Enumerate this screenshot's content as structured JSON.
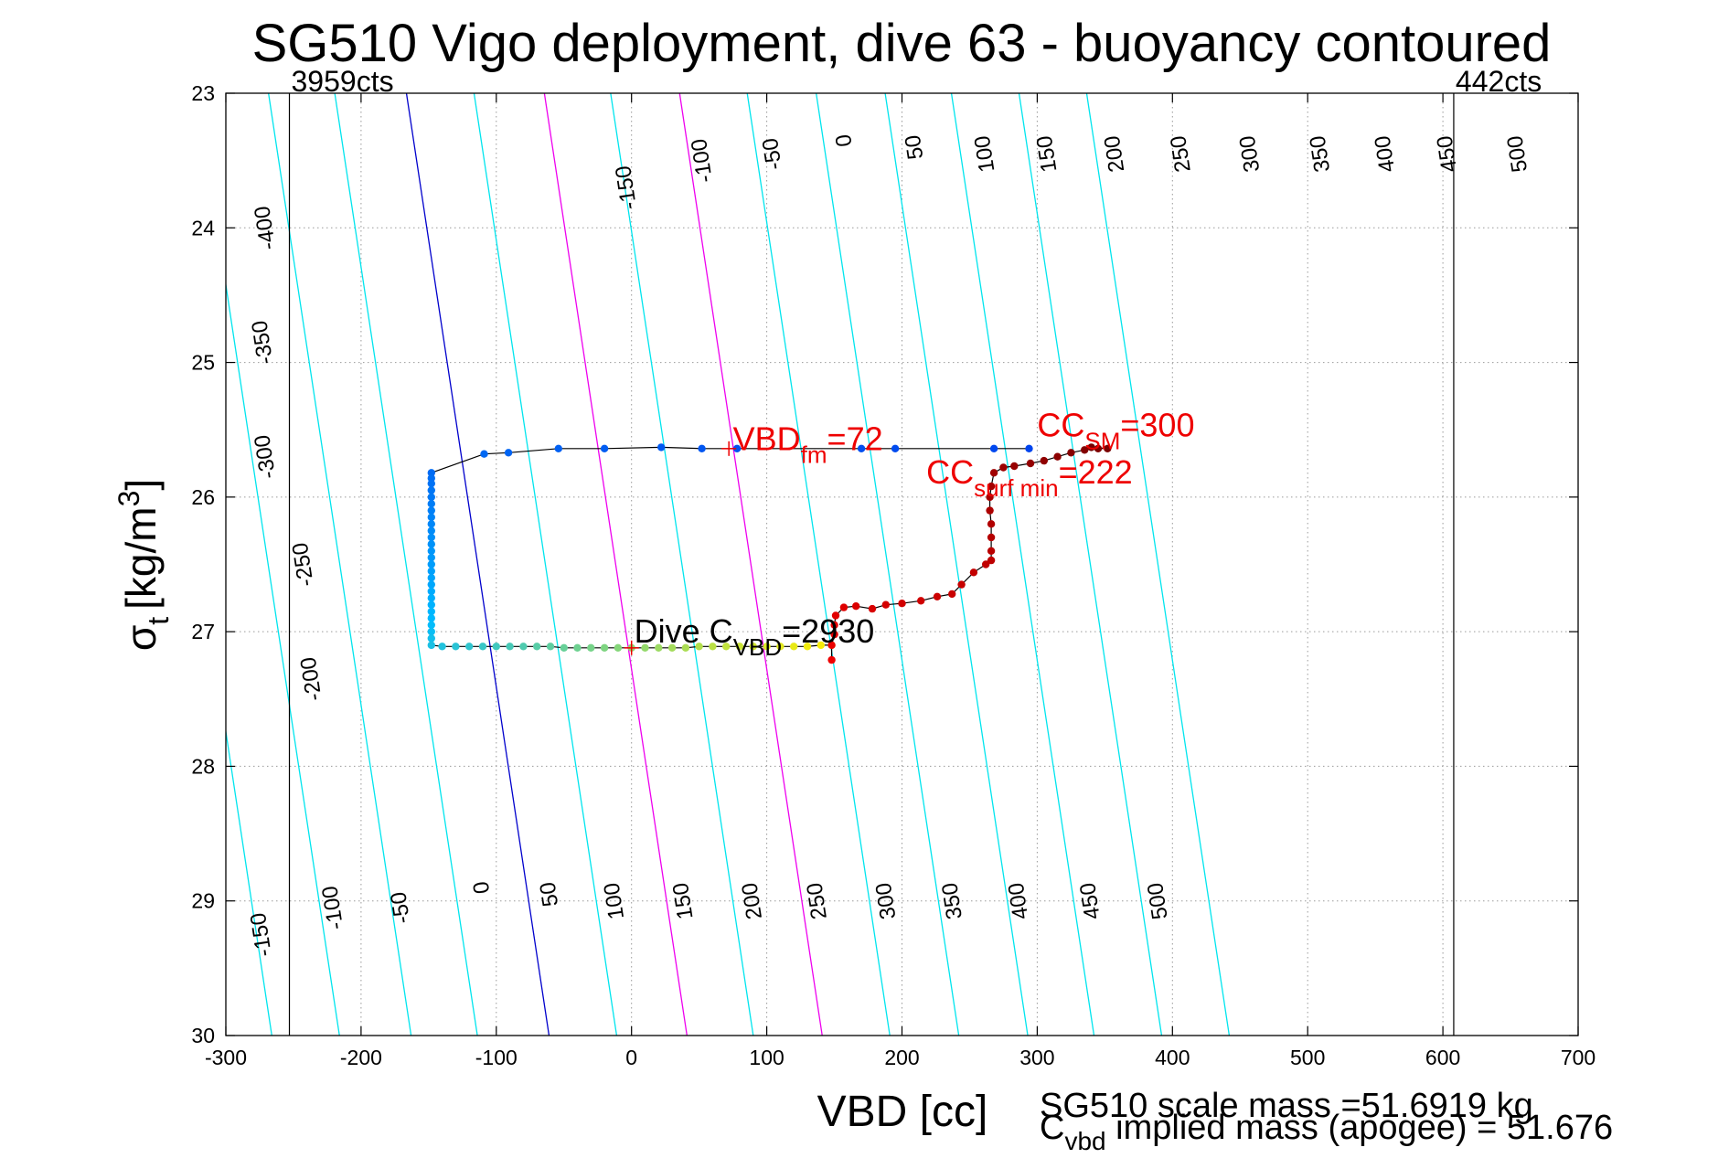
{
  "chart_data": {
    "type": "scatter",
    "title": "SG510 Vigo deployment, dive 63 - buoyancy contoured",
    "xlabel": "VBD [cc]",
    "ylabel": {
      "main": "σ",
      "sub": "t",
      "units": "[kg/m",
      "sup": "3",
      "close": "]"
    },
    "xlim": [
      -300,
      700
    ],
    "ylim": [
      23,
      30
    ],
    "y_reversed": true,
    "grid": "dotted",
    "x_ticks": [
      -300,
      -200,
      -100,
      0,
      100,
      200,
      300,
      400,
      500,
      600,
      700
    ],
    "x_tick_labels": [
      "-300",
      "-200",
      "-100",
      "0",
      "100",
      "200",
      "300",
      "400",
      "500",
      "600",
      "700"
    ],
    "y_ticks": [
      23,
      24,
      25,
      26,
      27,
      28,
      29,
      30
    ],
    "y_tick_labels": [
      "23",
      "24",
      "25",
      "26",
      "27",
      "28",
      "29",
      "30"
    ],
    "buoyancy_contours": {
      "levels": [
        -400,
        -350,
        -300,
        -250,
        -200,
        -150,
        -100,
        -50,
        0,
        50,
        100,
        150,
        200,
        250,
        300,
        350,
        400,
        450,
        500
      ],
      "colors": {
        "default": "#00e5ee",
        "zero": "#0000cc",
        "highlight": "#ee00ee"
      },
      "highlight_levels": [
        100,
        200
      ],
      "vbd_at_top": [
        -580.45,
        -527.45,
        -476.45,
        -423.45,
        -371.45,
        -321.45,
        -268.45,
        -219.45,
        -166.45,
        -116.45,
        -64.45,
        -15.45,
        35.55,
        85.55,
        136.55,
        187.55,
        236.55,
        286.55,
        336.55
      ],
      "top_labels": [
        {
          "text": "-400",
          "x": -270,
          "y": 24.0
        },
        {
          "text": "-350",
          "x": -272,
          "y": 24.85
        },
        {
          "text": "-300",
          "x": -270,
          "y": 25.7
        },
        {
          "text": "-250",
          "x": -242,
          "y": 26.5
        },
        {
          "text": "-200",
          "x": -236,
          "y": 27.35
        },
        {
          "text": "-150",
          "x": -3,
          "y": 23.7
        },
        {
          "text": "-100",
          "x": 53,
          "y": 23.5
        },
        {
          "text": "-50",
          "x": 105,
          "y": 23.45
        },
        {
          "text": "0",
          "x": 158,
          "y": 23.35
        },
        {
          "text": "50",
          "x": 210,
          "y": 23.4
        },
        {
          "text": "100",
          "x": 262,
          "y": 23.45
        },
        {
          "text": "150",
          "x": 308,
          "y": 23.45
        },
        {
          "text": "200",
          "x": 358,
          "y": 23.45
        },
        {
          "text": "250",
          "x": 407,
          "y": 23.45
        },
        {
          "text": "300",
          "x": 458,
          "y": 23.45
        },
        {
          "text": "350",
          "x": 510,
          "y": 23.45
        },
        {
          "text": "400",
          "x": 558,
          "y": 23.45
        },
        {
          "text": "450",
          "x": 604,
          "y": 23.45
        },
        {
          "text": "500",
          "x": 656,
          "y": 23.45
        }
      ],
      "bottom_labels": [
        {
          "text": "-150",
          "x": -273,
          "y": 29.25
        },
        {
          "text": "-100",
          "x": -220,
          "y": 29.05
        },
        {
          "text": "-50",
          "x": -170,
          "y": 29.05
        },
        {
          "text": "0",
          "x": -110,
          "y": 28.9
        },
        {
          "text": "50",
          "x": -60,
          "y": 28.95
        },
        {
          "text": "100",
          "x": -12,
          "y": 29.0
        },
        {
          "text": "150",
          "x": 39,
          "y": 29.0
        },
        {
          "text": "200",
          "x": 90,
          "y": 29.0
        },
        {
          "text": "250",
          "x": 138,
          "y": 29.0
        },
        {
          "text": "300",
          "x": 189,
          "y": 29.0
        },
        {
          "text": "350",
          "x": 238,
          "y": 29.0
        },
        {
          "text": "400",
          "x": 287,
          "y": 29.0
        },
        {
          "text": "450",
          "x": 340,
          "y": 29.0
        },
        {
          "text": "500",
          "x": 390,
          "y": 29.0
        }
      ]
    },
    "vertical_lines": [
      {
        "x": -253,
        "label": "3959cts"
      },
      {
        "x": 608,
        "label": "442cts"
      }
    ],
    "series": [
      {
        "name": "descent-apogee",
        "color_gradient": [
          "#0044ee",
          "#00bbff",
          "#ffee00"
        ],
        "points": [
          [
            294,
            25.64
          ],
          [
            268,
            25.64
          ],
          [
            195,
            25.64
          ],
          [
            170,
            25.64
          ],
          [
            78,
            25.64
          ],
          [
            52,
            25.64
          ],
          [
            22,
            25.63
          ],
          [
            -20,
            25.64
          ],
          [
            -54,
            25.64
          ],
          [
            -91,
            25.67
          ],
          [
            -109,
            25.68
          ],
          [
            -148,
            25.82
          ],
          [
            -148,
            25.86
          ],
          [
            -148,
            25.9
          ],
          [
            -148,
            25.95
          ],
          [
            -148,
            26.0
          ],
          [
            -148,
            26.05
          ],
          [
            -148,
            26.1
          ],
          [
            -148,
            26.15
          ],
          [
            -148,
            26.2
          ],
          [
            -148,
            26.25
          ],
          [
            -148,
            26.3
          ],
          [
            -148,
            26.35
          ],
          [
            -148,
            26.4
          ],
          [
            -148,
            26.45
          ],
          [
            -148,
            26.5
          ],
          [
            -148,
            26.55
          ],
          [
            -148,
            26.6
          ],
          [
            -148,
            26.65
          ],
          [
            -148,
            26.7
          ],
          [
            -148,
            26.75
          ],
          [
            -148,
            26.8
          ],
          [
            -148,
            26.85
          ],
          [
            -148,
            26.9
          ],
          [
            -148,
            26.95
          ],
          [
            -148,
            27.0
          ],
          [
            -148,
            27.05
          ],
          [
            -148,
            27.1
          ],
          [
            -140,
            27.11
          ],
          [
            -130,
            27.11
          ],
          [
            -120,
            27.11
          ],
          [
            -110,
            27.11
          ],
          [
            -100,
            27.11
          ],
          [
            -90,
            27.11
          ],
          [
            -80,
            27.11
          ],
          [
            -70,
            27.11
          ],
          [
            -60,
            27.11
          ],
          [
            -50,
            27.12
          ],
          [
            -40,
            27.12
          ],
          [
            -30,
            27.12
          ],
          [
            -20,
            27.12
          ],
          [
            -10,
            27.12
          ],
          [
            0,
            27.12
          ],
          [
            10,
            27.12
          ],
          [
            20,
            27.12
          ],
          [
            30,
            27.12
          ],
          [
            40,
            27.12
          ],
          [
            50,
            27.11
          ],
          [
            60,
            27.11
          ],
          [
            70,
            27.11
          ],
          [
            80,
            27.11
          ],
          [
            90,
            27.11
          ],
          [
            100,
            27.11
          ],
          [
            110,
            27.11
          ],
          [
            120,
            27.11
          ],
          [
            130,
            27.11
          ],
          [
            140,
            27.1
          ],
          [
            148,
            27.1
          ]
        ]
      },
      {
        "name": "climb",
        "color_gradient": [
          "#ee0000",
          "#bb0000",
          "#770000"
        ],
        "points": [
          [
            148,
            27.21
          ],
          [
            148,
            27.1
          ],
          [
            150,
            27.02
          ],
          [
            150,
            26.95
          ],
          [
            151,
            26.88
          ],
          [
            157,
            26.82
          ],
          [
            166,
            26.81
          ],
          [
            178,
            26.83
          ],
          [
            188,
            26.8
          ],
          [
            200,
            26.79
          ],
          [
            214,
            26.77
          ],
          [
            226,
            26.74
          ],
          [
            237,
            26.72
          ],
          [
            244,
            26.65
          ],
          [
            253,
            26.56
          ],
          [
            262,
            26.5
          ],
          [
            266,
            26.47
          ],
          [
            266,
            26.4
          ],
          [
            266,
            26.3
          ],
          [
            266,
            26.2
          ],
          [
            265,
            26.1
          ],
          [
            265,
            26.0
          ],
          [
            266,
            25.92
          ],
          [
            268,
            25.82
          ],
          [
            275,
            25.78
          ],
          [
            283,
            25.77
          ],
          [
            295,
            25.75
          ],
          [
            305,
            25.73
          ],
          [
            315,
            25.7
          ],
          [
            325,
            25.67
          ],
          [
            335,
            25.65
          ],
          [
            345,
            25.64
          ],
          [
            352,
            25.64
          ],
          [
            340,
            25.63
          ]
        ]
      }
    ],
    "markers": [
      {
        "x": 72,
        "y": 25.64,
        "color": "#ee0000"
      },
      {
        "x": 0,
        "y": 27.12,
        "color": "#ee0000"
      }
    ],
    "annotations": [
      {
        "main": "VBD",
        "sub": "fm",
        "tail": "=72",
        "x": 75,
        "y": 25.65,
        "color": "#ee0000"
      },
      {
        "main": "CC",
        "sub": "surf min",
        "tail": "=222",
        "x": 218,
        "y": 25.9,
        "color": "#ee0000"
      },
      {
        "main": "CC",
        "sub": "SM",
        "tail": "=300",
        "x": 300,
        "y": 25.55,
        "color": "#ee0000"
      },
      {
        "main": "Dive C",
        "sub": "VBD",
        "tail": "=2930",
        "x": 2,
        "y": 27.08,
        "color": "#000000"
      }
    ],
    "footer": {
      "line1": "SG510 scale mass =51.6919 kg",
      "line2_main": "C",
      "line2_sub": "vbd",
      "line2_tail": " implied mass (apogee) = 51.676"
    }
  }
}
